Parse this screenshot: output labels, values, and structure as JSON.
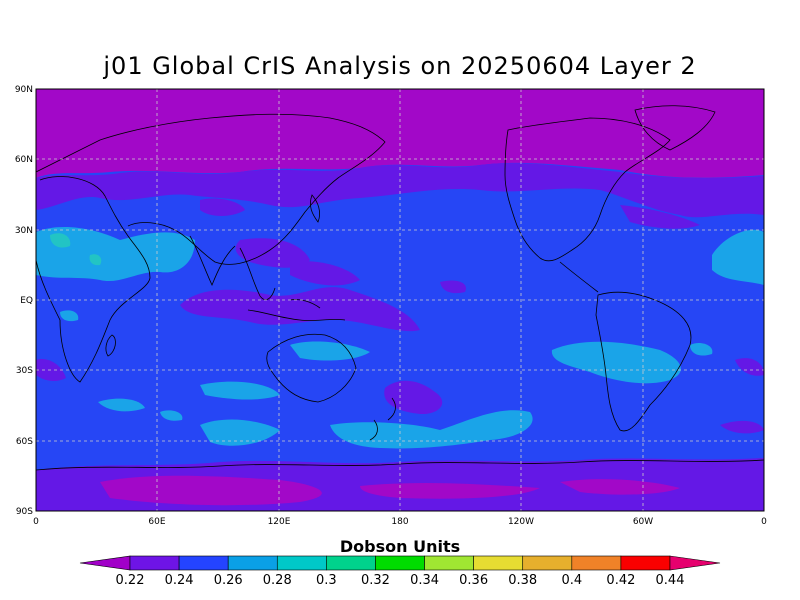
{
  "title": "j01 Global CrIS Analysis on 20250604 Layer 2",
  "colorbar": {
    "title": "Dobson Units",
    "labels": [
      "0.22",
      "0.24",
      "0.26",
      "0.28",
      "0.3",
      "0.32",
      "0.34",
      "0.36",
      "0.38",
      "0.4",
      "0.42",
      "0.44"
    ],
    "colors": [
      "#a100c8",
      "#6e14e6",
      "#2444ff",
      "#0aa0e6",
      "#00c8c8",
      "#00d28c",
      "#00dc00",
      "#a0e632",
      "#e6dc32",
      "#e6af2d",
      "#f08228",
      "#fa0000",
      "#e6006e"
    ]
  },
  "map": {
    "y_ticks": [
      "90N",
      "60N",
      "30N",
      "EQ",
      "30S",
      "60S",
      "90S"
    ],
    "x_ticks": [
      "0",
      "60E",
      "120E",
      "180",
      "120W",
      "60W",
      "0"
    ],
    "grid": true,
    "field_colors": {
      "ocean_low": "#2646f5",
      "band_violet": "#6418e6",
      "band_purple": "#a208c8",
      "cyan": "#1aa4e8",
      "teal": "#22c4c4",
      "coast": "#000000"
    }
  }
}
